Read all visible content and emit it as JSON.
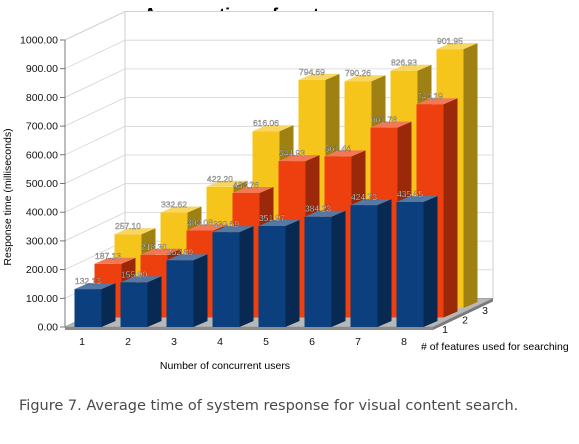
{
  "chart_data": {
    "type": "bar",
    "subtype": "3d-clustered",
    "title": "Average time of system response",
    "xlabel": "Number of concurrent users",
    "ylabel": "Response time (milliseconds)",
    "zlabel": "# of features used for searching",
    "categories": [
      "1",
      "2",
      "3",
      "4",
      "5",
      "6",
      "7",
      "8"
    ],
    "ylim": [
      0,
      1000
    ],
    "yticks": [
      "0.00",
      "100.00",
      "200.00",
      "300.00",
      "400.00",
      "500.00",
      "600.00",
      "700.00",
      "800.00",
      "900.00",
      "1000.00"
    ],
    "grid": true,
    "series": [
      {
        "name": "1",
        "color": "#0c3f7d",
        "values": [
          132.13,
          155.9,
          232.89,
          330.69,
          351.97,
          384.23,
          424.73,
          435.55
        ],
        "labels": [
          "132.13",
          "155.90",
          "232.89",
          "330.69",
          "351.97",
          "384.23",
          "424.73",
          "435.55"
        ]
      },
      {
        "name": "2",
        "color": "#ee3f0e",
        "values": [
          187.13,
          218.3,
          303.08,
          433.76,
          544.93,
          561.44,
          661.78,
          743.19
        ],
        "labels": [
          "187.13",
          "218.30",
          "303.08",
          "433.76",
          "544.93",
          "561.44",
          "661.78",
          "743.19"
        ]
      },
      {
        "name": "3",
        "color": "#f5c51c",
        "values": [
          257.1,
          332.62,
          422.2,
          616.06,
          794.69,
          790.26,
          826.93,
          901.95
        ],
        "labels": [
          "257.10",
          "332.62",
          "422.20",
          "616.06",
          "794.69",
          "790.26",
          "826.93",
          "901.95"
        ]
      }
    ]
  },
  "caption": "Figure 7. Average time of system response for visual content search."
}
